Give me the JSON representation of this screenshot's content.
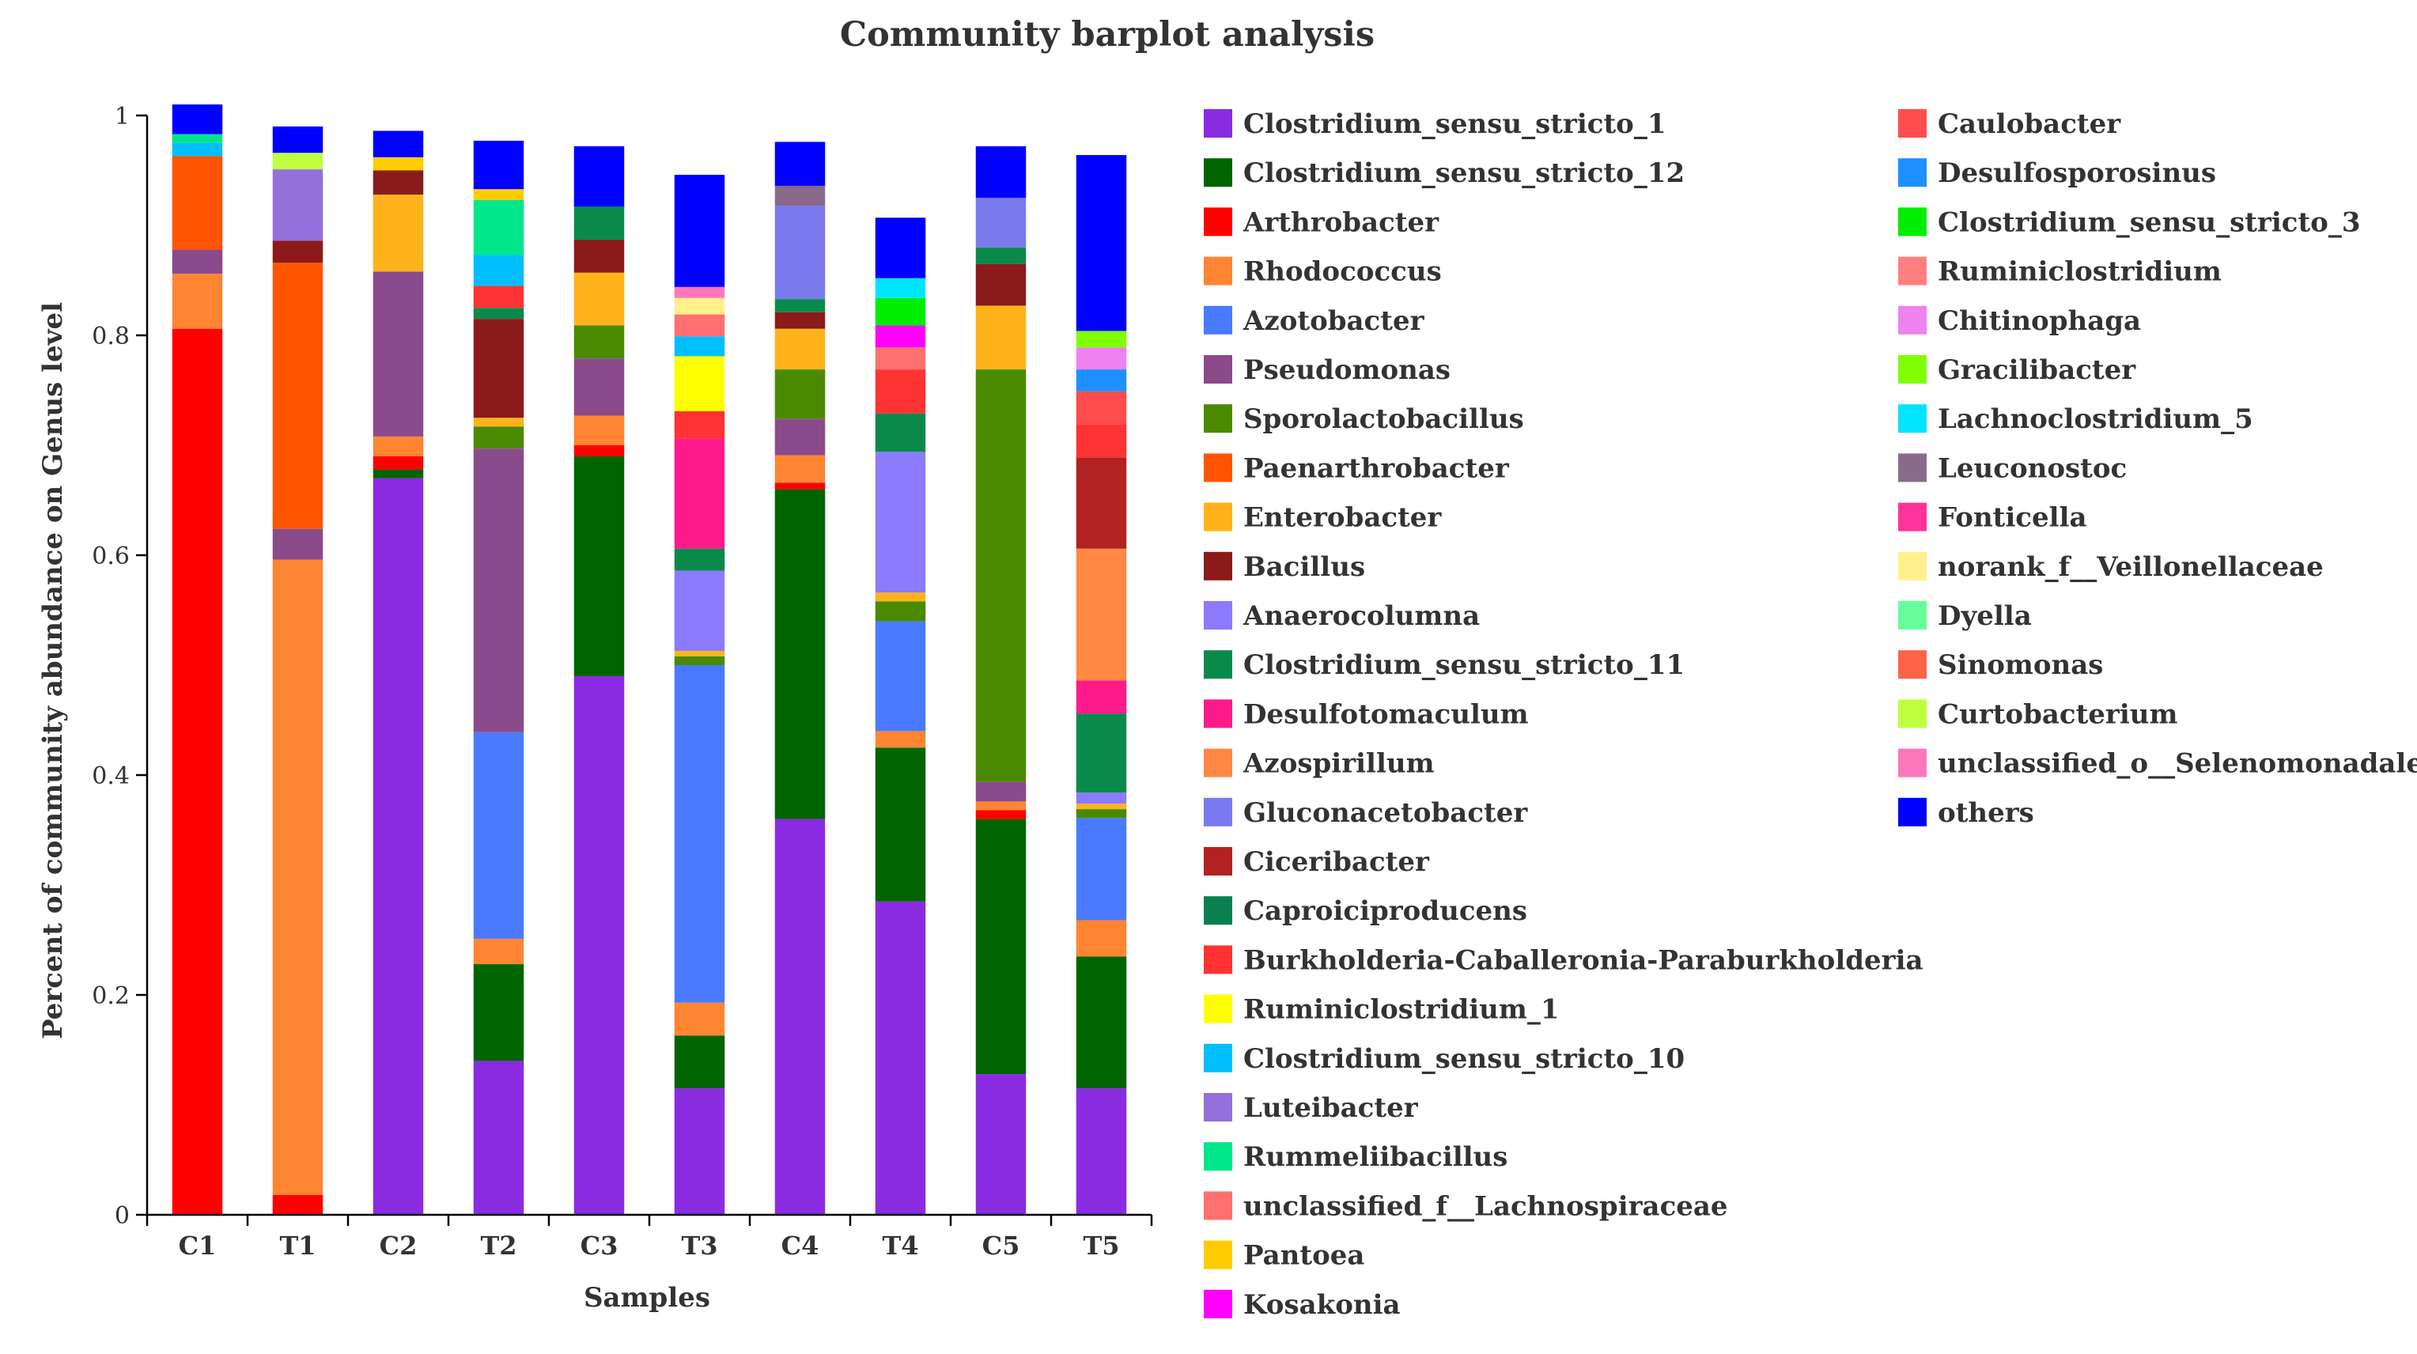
{
  "chart_data": {
    "type": "bar",
    "stacked": true,
    "title": "Community barplot analysis",
    "xlabel": "Samples",
    "ylabel": "Percent of community abundance on Genus level",
    "ylim": [
      0,
      1
    ],
    "yticks": [
      0,
      0.2,
      0.4,
      0.6,
      0.8,
      1
    ],
    "ytick_labels": [
      "0",
      "0.2",
      "0.4",
      "0.6",
      "0.8",
      "1"
    ],
    "categories": [
      "C1",
      "T1",
      "C2",
      "T2",
      "C3",
      "T3",
      "C4",
      "T4",
      "C5",
      "T5"
    ],
    "legend_position": "right",
    "series": [
      {
        "name": "Clostridium_sensu_stricto_1",
        "color": "#8a2be2",
        "values": [
          0,
          0,
          0.67,
          0.14,
          0.49,
          0.115,
          0.36,
          0.285,
          0.128,
          0.115
        ]
      },
      {
        "name": "Clostridium_sensu_stricto_12",
        "color": "#006400",
        "values": [
          0,
          0,
          0.008,
          0.088,
          0.2,
          0.048,
          0.3,
          0.14,
          0.232,
          0.12
        ]
      },
      {
        "name": "Arthrobacter",
        "color": "#ff0000",
        "values": [
          0.806,
          0.018,
          0.012,
          0,
          0.01,
          0,
          0.006,
          0,
          0.008,
          0
        ]
      },
      {
        "name": "Rhodococcus",
        "color": "#ff8533",
        "values": [
          0.05,
          0.578,
          0.018,
          0.023,
          0.027,
          0.03,
          0.025,
          0.015,
          0.008,
          0.033
        ]
      },
      {
        "name": "Azotobacter",
        "color": "#4a7aff",
        "values": [
          0,
          0,
          0,
          0.188,
          0,
          0.307,
          0,
          0.1,
          0,
          0.093
        ]
      },
      {
        "name": "Pseudomonas",
        "color": "#8b4a8b",
        "values": [
          0.022,
          0.028,
          0.15,
          0.258,
          0.052,
          0,
          0.033,
          0,
          0.018,
          0
        ]
      },
      {
        "name": "Sporolactobacillus",
        "color": "#4a8a00",
        "values": [
          0,
          0,
          0,
          0.02,
          0.03,
          0.008,
          0.045,
          0.018,
          0.375,
          0.008
        ]
      },
      {
        "name": "Paenarthrobacter",
        "color": "#ff5500",
        "values": [
          0.085,
          0.242,
          0,
          0,
          0,
          0,
          0,
          0,
          0,
          0
        ]
      },
      {
        "name": "Enterobacter",
        "color": "#ffb31a",
        "values": [
          0,
          0,
          0.07,
          0.008,
          0.048,
          0.005,
          0.037,
          0.008,
          0.058,
          0.005
        ]
      },
      {
        "name": "Bacillus",
        "color": "#8b1a1a",
        "values": [
          0,
          0.02,
          0.022,
          0.09,
          0.03,
          0,
          0.015,
          0,
          0.038,
          0
        ]
      },
      {
        "name": "Anaerocolumna",
        "color": "#8c7aff",
        "values": [
          0,
          0,
          0,
          0,
          0,
          0.073,
          0,
          0.128,
          0,
          0.01
        ]
      },
      {
        "name": "Clostridium_sensu_stricto_11",
        "color": "#0a8a4a",
        "values": [
          0,
          0,
          0,
          0.01,
          0.03,
          0.02,
          0.012,
          0.035,
          0.015,
          0.072
        ]
      },
      {
        "name": "Desulfotomaculum",
        "color": "#ff1a8c",
        "values": [
          0,
          0,
          0,
          0,
          0,
          0.1,
          0,
          0,
          0,
          0.03
        ]
      },
      {
        "name": "Azospirillum",
        "color": "#ff8844",
        "values": [
          0,
          0,
          0,
          0,
          0,
          0,
          0,
          0,
          0,
          0.12
        ]
      },
      {
        "name": "Gluconacetobacter",
        "color": "#7a7aee",
        "values": [
          0,
          0,
          0,
          0,
          0,
          0,
          0.085,
          0,
          0.045,
          0
        ]
      },
      {
        "name": "Ciceribacter",
        "color": "#b22222",
        "values": [
          0,
          0,
          0,
          0,
          0,
          0,
          0,
          0,
          0,
          0.083
        ]
      },
      {
        "name": "Caproiciproducens",
        "color": "#0a8050",
        "values": [
          0,
          0,
          0,
          0,
          0,
          0,
          0,
          0,
          0,
          0
        ]
      },
      {
        "name": "Burkholderia-Caballeronia-Paraburkholderia",
        "color": "#ff3333",
        "values": [
          0,
          0,
          0,
          0.02,
          0,
          0.025,
          0,
          0.04,
          0,
          0.03
        ]
      },
      {
        "name": "Ruminiclostridium_1",
        "color": "#ffff00",
        "values": [
          0,
          0,
          0,
          0,
          0,
          0.05,
          0,
          0,
          0,
          0
        ]
      },
      {
        "name": "Clostridium_sensu_stricto_10",
        "color": "#00bfff",
        "values": [
          0.012,
          0,
          0,
          0.028,
          0,
          0.018,
          0,
          0,
          0,
          0
        ]
      },
      {
        "name": "Luteibacter",
        "color": "#9370db",
        "values": [
          0,
          0.065,
          0,
          0,
          0,
          0,
          0,
          0,
          0,
          0
        ]
      },
      {
        "name": "Rummeliibacillus",
        "color": "#00e68a",
        "values": [
          0.008,
          0,
          0,
          0.05,
          0,
          0,
          0,
          0,
          0,
          0
        ]
      },
      {
        "name": "unclassified_f__Lachnospiraceae",
        "color": "#ff7070",
        "values": [
          0,
          0,
          0,
          0,
          0,
          0.02,
          0,
          0.02,
          0,
          0
        ]
      },
      {
        "name": "Pantoea",
        "color": "#ffcc00",
        "values": [
          0,
          0,
          0.012,
          0.01,
          0,
          0,
          0,
          0,
          0,
          0
        ]
      },
      {
        "name": "Kosakonia",
        "color": "#ff00ff",
        "values": [
          0,
          0,
          0,
          0,
          0,
          0,
          0,
          0.02,
          0,
          0
        ]
      },
      {
        "name": "Caulobacter",
        "color": "#ff4d4d",
        "values": [
          0,
          0,
          0,
          0,
          0,
          0,
          0,
          0,
          0,
          0.03
        ]
      },
      {
        "name": "Desulfosporosinus",
        "color": "#1e90ff",
        "values": [
          0,
          0,
          0,
          0,
          0,
          0,
          0,
          0,
          0,
          0.02
        ]
      },
      {
        "name": "Clostridium_sensu_stricto_3",
        "color": "#00ee00",
        "values": [
          0,
          0,
          0,
          0,
          0,
          0,
          0,
          0.025,
          0,
          0
        ]
      },
      {
        "name": "Ruminiclostridium",
        "color": "#ff8080",
        "values": [
          0,
          0,
          0,
          0,
          0,
          0,
          0,
          0,
          0,
          0
        ]
      },
      {
        "name": "Chitinophaga",
        "color": "#ee82ee",
        "values": [
          0,
          0,
          0,
          0,
          0,
          0,
          0,
          0,
          0,
          0.02
        ]
      },
      {
        "name": "Gracilibacter",
        "color": "#7fff00",
        "values": [
          0,
          0,
          0,
          0,
          0,
          0,
          0,
          0,
          0,
          0.015
        ]
      },
      {
        "name": "Lachnoclostridium_5",
        "color": "#00e5ff",
        "values": [
          0,
          0,
          0,
          0,
          0,
          0,
          0,
          0.018,
          0,
          0
        ]
      },
      {
        "name": "Leuconostoc",
        "color": "#8a6a8a",
        "values": [
          0,
          0,
          0,
          0,
          0,
          0,
          0.018,
          0,
          0,
          0
        ]
      },
      {
        "name": "Fonticella",
        "color": "#ff3399",
        "values": [
          0,
          0,
          0,
          0,
          0,
          0,
          0,
          0,
          0,
          0
        ]
      },
      {
        "name": "norank_f__Veillonellaceae",
        "color": "#fff08c",
        "values": [
          0,
          0,
          0,
          0,
          0,
          0.015,
          0,
          0,
          0,
          0
        ]
      },
      {
        "name": "Dyella",
        "color": "#66ff99",
        "values": [
          0,
          0,
          0,
          0,
          0,
          0,
          0,
          0,
          0,
          0
        ]
      },
      {
        "name": "Sinomonas",
        "color": "#ff6347",
        "values": [
          0,
          0,
          0,
          0,
          0,
          0,
          0,
          0,
          0,
          0
        ]
      },
      {
        "name": "Curtobacterium",
        "color": "#bfff3f",
        "values": [
          0,
          0.015,
          0,
          0,
          0,
          0,
          0,
          0,
          0,
          0
        ]
      },
      {
        "name": "unclassified_o__Selenomonadale",
        "color": "#ff77bb",
        "values": [
          0,
          0,
          0,
          0,
          0,
          0.01,
          0,
          0,
          0,
          0
        ]
      },
      {
        "name": "others",
        "color": "#0000ff",
        "values": [
          0.027,
          0.024,
          0.024,
          0.044,
          0.055,
          0.102,
          0.04,
          0.055,
          0.047,
          0.16
        ]
      }
    ]
  }
}
